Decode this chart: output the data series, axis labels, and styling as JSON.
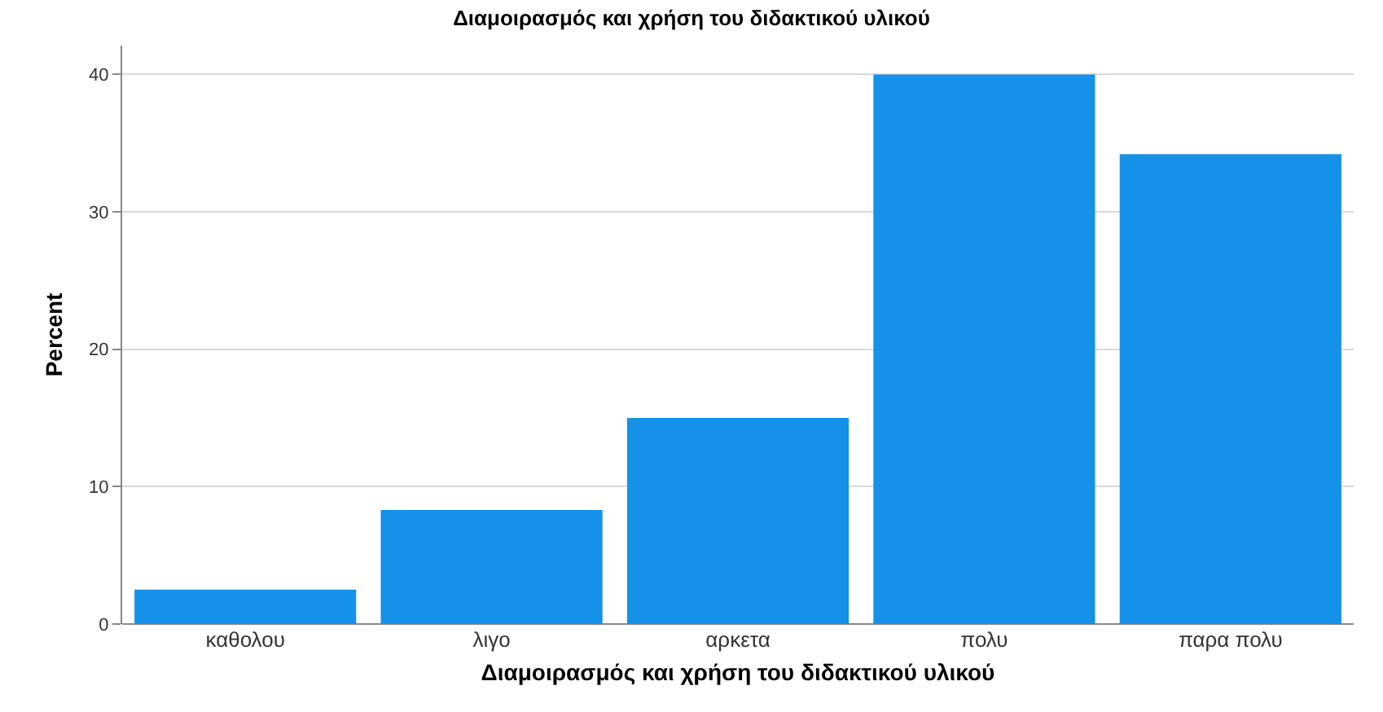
{
  "chart_data": {
    "type": "bar",
    "title": "Διαμοιρασμός και χρήση του διδακτικού υλικού",
    "xlabel": "Διαμοιρασμός και χρήση του διδακτικού υλικού",
    "ylabel": "Percent",
    "categories": [
      "καθολου",
      "λιγο",
      "αρκετα",
      "πολυ",
      "παρα πολυ"
    ],
    "values": [
      2.5,
      8.3,
      15.0,
      40.0,
      34.2
    ],
    "color": "#1591e9",
    "ylim": [
      0,
      42.1
    ],
    "yticks": [
      0,
      10,
      20,
      30,
      40
    ],
    "grid": "y"
  }
}
